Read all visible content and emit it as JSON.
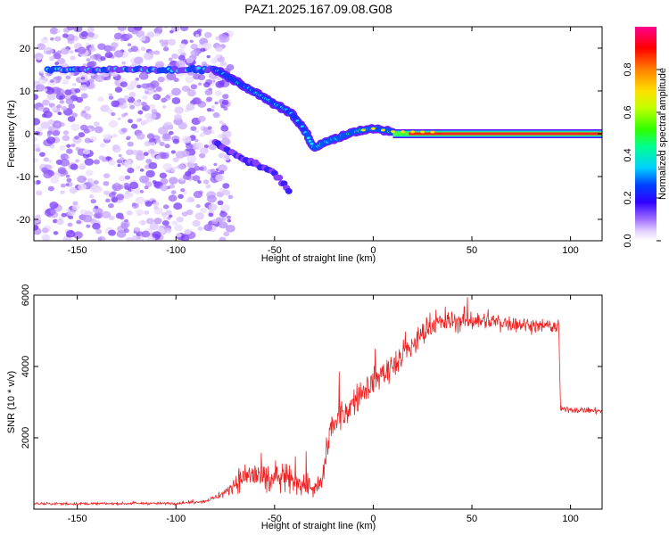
{
  "chart_data": [
    {
      "type": "heatmap",
      "title": "PAZ1.2025.167.09.08.G08",
      "xlabel": "Height of straight line (km)",
      "ylabel": "Frequency (Hz)",
      "xlim": [
        -172,
        116
      ],
      "ylim": [
        -25,
        25
      ],
      "xticks": [
        -150,
        -100,
        -50,
        0,
        50,
        100
      ],
      "yticks": [
        -20,
        -10,
        0,
        10,
        20
      ],
      "grid": false,
      "colorbar": {
        "label": "Normalized spectral amplitude",
        "range": [
          0,
          1
        ],
        "ticks": [
          0.0,
          0.2,
          0.4,
          0.6,
          0.8
        ]
      },
      "features": {
        "noise_region_x": [
          -172,
          -80
        ],
        "upper_band": {
          "y": 15,
          "x": [
            -165,
            -80
          ]
        },
        "trace": [
          {
            "x": -80,
            "y": 15
          },
          {
            "x": -65,
            "y": 11
          },
          {
            "x": -50,
            "y": 7
          },
          {
            "x": -42,
            "y": 5
          },
          {
            "x": -35,
            "y": 1
          },
          {
            "x": -30,
            "y": -3.5
          },
          {
            "x": -25,
            "y": -2
          },
          {
            "x": -18,
            "y": -1
          },
          {
            "x": -10,
            "y": 0.5
          },
          {
            "x": 0,
            "y": 1.2
          },
          {
            "x": 10,
            "y": 0.5
          },
          {
            "x": 116,
            "y": 0
          }
        ],
        "lower_trace": [
          {
            "x": -80,
            "y": -2
          },
          {
            "x": -70,
            "y": -5
          },
          {
            "x": -60,
            "y": -7
          },
          {
            "x": -50,
            "y": -9
          },
          {
            "x": -42,
            "y": -14
          }
        ]
      }
    },
    {
      "type": "line",
      "xlabel": "Height of straight line (km)",
      "ylabel": "SNR (10 * v/v)",
      "xlim": [
        -172,
        116
      ],
      "ylim": [
        0,
        6000
      ],
      "xticks": [
        -150,
        -100,
        -50,
        0,
        50,
        100
      ],
      "yticks": [
        2000,
        4000,
        6000
      ],
      "grid": false,
      "series": [
        {
          "color": "#ee2222",
          "points": [
            {
              "x": -172,
              "y": 150,
              "noise": 60
            },
            {
              "x": -100,
              "y": 160,
              "noise": 60
            },
            {
              "x": -85,
              "y": 220,
              "noise": 80
            },
            {
              "x": -75,
              "y": 450,
              "noise": 200
            },
            {
              "x": -70,
              "y": 750,
              "noise": 450
            },
            {
              "x": -62,
              "y": 1000,
              "noise": 900
            },
            {
              "x": -55,
              "y": 800,
              "noise": 800
            },
            {
              "x": -45,
              "y": 850,
              "noise": 750
            },
            {
              "x": -35,
              "y": 700,
              "noise": 650
            },
            {
              "x": -30,
              "y": 550,
              "noise": 400
            },
            {
              "x": -26,
              "y": 700,
              "noise": 500
            },
            {
              "x": -22,
              "y": 2200,
              "noise": 900
            },
            {
              "x": -10,
              "y": 3000,
              "noise": 700
            },
            {
              "x": 0,
              "y": 3600,
              "noise": 700
            },
            {
              "x": 10,
              "y": 4000,
              "noise": 700
            },
            {
              "x": 20,
              "y": 4600,
              "noise": 700
            },
            {
              "x": 30,
              "y": 5200,
              "noise": 600
            },
            {
              "x": 50,
              "y": 5300,
              "noise": 500
            },
            {
              "x": 70,
              "y": 5200,
              "noise": 400
            },
            {
              "x": 94,
              "y": 5100,
              "noise": 350
            },
            {
              "x": 95,
              "y": 2800,
              "noise": 150
            },
            {
              "x": 116,
              "y": 2750,
              "noise": 150
            }
          ]
        }
      ]
    }
  ]
}
